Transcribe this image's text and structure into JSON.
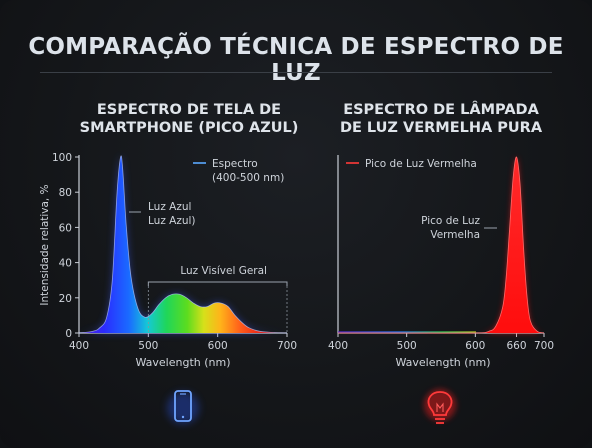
{
  "title": "COMPARAÇÃO TÉCNICA DE ESPECTRO DE LUZ",
  "colors": {
    "background": "#141619",
    "blue_peak": "#3a5bff",
    "red_peak": "#ff1a1a",
    "legend_blue": "#5aa8ff",
    "legend_red": "#ff3a3a",
    "text": "#dfe4ea"
  },
  "icons": {
    "left": "smartphone-icon",
    "right": "light-bulb-icon"
  },
  "chart_data": [
    {
      "type": "area",
      "title": "ESPECTRO DE TELA DE\nSMARTPHONE (PICO AZUL)",
      "xlabel": "Wavelength (nm)",
      "ylabel": "Intensidade relativa, %",
      "xlim": [
        400,
        700
      ],
      "ylim": [
        0,
        100
      ],
      "x_ticks": [
        "400",
        "500",
        "600",
        "700"
      ],
      "y_ticks": [
        "0",
        "20",
        "40",
        "60",
        "80",
        "100"
      ],
      "grid": false,
      "legend": "top-right",
      "series": [
        {
          "name": "Espectro\n(400-500 nm)",
          "x": [
            400,
            420,
            430,
            440,
            448,
            455,
            460,
            463,
            468,
            475,
            485,
            495,
            505,
            515,
            525,
            535,
            545,
            555,
            565,
            575,
            585,
            595,
            605,
            615,
            625,
            635,
            645,
            660,
            680,
            700
          ],
          "y": [
            0,
            1,
            3,
            9,
            30,
            80,
            100,
            93,
            62,
            32,
            14,
            9,
            11,
            16,
            20,
            22,
            22,
            20,
            17,
            15,
            15,
            17,
            17,
            15,
            10,
            6,
            3,
            1,
            0.3,
            0
          ]
        }
      ],
      "annotations": [
        {
          "text": "Luz Azul\nLuz Azul)",
          "x": 463,
          "y": 64
        },
        {
          "text": "Luz Visível Geral",
          "x": 600,
          "y": 35,
          "range": [
            500,
            700
          ]
        }
      ]
    },
    {
      "type": "area",
      "title": "ESPECTRO DE LÂMPADA\nDE LUZ VERMELHA PURA",
      "xlabel": "Wavelength (nm)",
      "xlim": [
        400,
        700
      ],
      "ylim": [
        0,
        100
      ],
      "x_ticks": [
        "400",
        "500",
        "600",
        "660",
        "700"
      ],
      "x_tick_values": [
        400,
        500,
        600,
        660,
        700
      ],
      "grid": false,
      "legend": "top-left",
      "series": [
        {
          "name": "Pico de Luz Vermelha",
          "x": [
            400,
            500,
            600,
            620,
            630,
            640,
            645,
            650,
            655,
            660,
            665,
            670,
            675,
            680,
            690,
            700
          ],
          "y": [
            0,
            0,
            0,
            1,
            4,
            15,
            32,
            60,
            88,
            100,
            85,
            50,
            22,
            7,
            1,
            0
          ]
        }
      ],
      "annotations": [
        {
          "text": "Pico de Luz\nVermelha",
          "x": 655,
          "y": 60
        }
      ]
    }
  ]
}
